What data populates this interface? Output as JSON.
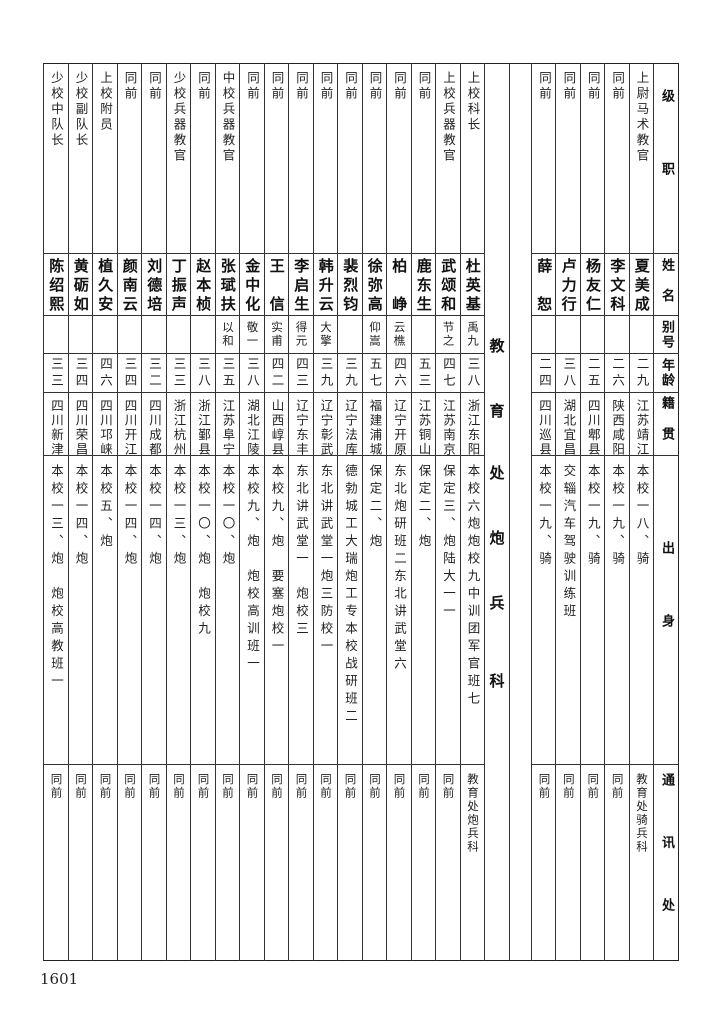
{
  "header": {
    "rank": "级职",
    "name": "姓名",
    "alias": "别号",
    "age": "年龄",
    "native": "籍贯",
    "education": "出身",
    "address": "通讯处"
  },
  "cavalry_rows": [
    {
      "rank": "上尉马术教官",
      "name": "夏美成",
      "alias": "",
      "age": "二九",
      "native": "江苏靖江",
      "education": "本校一八、骑",
      "address": "教育处骑兵科"
    },
    {
      "rank": "同前",
      "name": "李文科",
      "alias": "",
      "age": "二六",
      "native": "陕西咸阳",
      "education": "本校一九、骑",
      "address": "同前"
    },
    {
      "rank": "同前",
      "name": "杨友仁",
      "alias": "",
      "age": "二五",
      "native": "四川郫县",
      "education": "本校一九、骑",
      "address": "同前"
    },
    {
      "rank": "同前",
      "name": "卢力行",
      "alias": "",
      "age": "三八",
      "native": "湖北宜昌",
      "education": "交辎汽车驾驶训练班",
      "address": "同前"
    },
    {
      "rank": "同前",
      "name": "薛恕",
      "alias": "",
      "age": "二四",
      "native": "四川巡县",
      "education": "本校一九、骑",
      "address": "同前"
    }
  ],
  "section_title": "教育处炮兵科",
  "artillery_rows": [
    {
      "rank": "上校科长",
      "name": "杜英基",
      "alias": "禹九",
      "age": "三八",
      "native": "浙江东阳",
      "education": "本校六炮炮校九中训团军官班七",
      "address": "教育处炮兵科"
    },
    {
      "rank": "上校兵器教官",
      "name": "武颂和",
      "alias": "节之",
      "age": "四七",
      "native": "江苏南京",
      "education": "保定三、炮陆大一一",
      "address": "同前"
    },
    {
      "rank": "同前",
      "name": "鹿东生",
      "alias": "",
      "age": "五三",
      "native": "江苏铜山",
      "education": "保定二、炮",
      "address": "同前"
    },
    {
      "rank": "同前",
      "name": "柏峥",
      "alias": "云樵",
      "age": "四六",
      "native": "辽宁开原",
      "education": "东北炮研班二东北讲武堂六",
      "address": "同前"
    },
    {
      "rank": "同前",
      "name": "徐弥高",
      "alias": "仰嵩",
      "age": "五七",
      "native": "福建浦城",
      "education": "保定二、炮",
      "address": "同前"
    },
    {
      "rank": "同前",
      "name": "裴烈钧",
      "alias": "",
      "age": "三九",
      "native": "辽宁法库",
      "education": "德勃城工大瑞炮工专本校战研班二",
      "address": "同前"
    },
    {
      "rank": "同前",
      "name": "韩升云",
      "alias": "大擎",
      "age": "三九",
      "native": "辽宁彰武",
      "education": "东北讲武堂一炮三防校一",
      "address": "同前"
    },
    {
      "rank": "同前",
      "name": "李启生",
      "alias": "得元",
      "age": "四三",
      "native": "辽宁东丰",
      "education": "东北讲武堂一　炮校三",
      "address": "同前"
    },
    {
      "rank": "同前",
      "name": "王信",
      "alias": "实甫",
      "age": "四二",
      "native": "山西崞县",
      "education": "本校九、炮　要塞炮校一",
      "address": "同前"
    },
    {
      "rank": "同前",
      "name": "金中化",
      "alias": "敬一",
      "age": "三八",
      "native": "湖北江陵",
      "education": "本校九、炮　炮校高训班一",
      "address": "同前"
    },
    {
      "rank": "中校兵器教官",
      "name": "张珷扶",
      "alias": "以和",
      "age": "三五",
      "native": "江苏阜宁",
      "education": "本校一〇、炮",
      "address": "同前"
    },
    {
      "rank": "同前",
      "name": "赵本桢",
      "alias": "",
      "age": "三八",
      "native": "浙江鄞县",
      "education": "本校一〇、炮　炮校九",
      "address": "同前"
    },
    {
      "rank": "少校兵器教官",
      "name": "丁振声",
      "alias": "",
      "age": "三三",
      "native": "浙江杭州",
      "education": "本校一三、炮",
      "address": "同前"
    },
    {
      "rank": "同前",
      "name": "刘德培",
      "alias": "",
      "age": "三二",
      "native": "四川成都",
      "education": "本校一四、炮",
      "address": "同前"
    },
    {
      "rank": "同前",
      "name": "颜南云",
      "alias": "",
      "age": "三四",
      "native": "四川开江",
      "education": "本校一四、炮",
      "address": "同前"
    },
    {
      "rank": "上校附员",
      "name": "植久安",
      "alias": "",
      "age": "四六",
      "native": "四川邛崃",
      "education": "本校五、炮",
      "address": "同前"
    },
    {
      "rank": "少校副队长",
      "name": "黄砺如",
      "alias": "",
      "age": "三四",
      "native": "四川荣昌",
      "education": "本校一四、炮",
      "address": "同前"
    },
    {
      "rank": "少校中队长",
      "name": "陈绍熙",
      "alias": "",
      "age": "三三",
      "native": "四川新津",
      "education": "本校一三、炮　炮校高教班一",
      "address": "同前"
    }
  ],
  "page_number": "1601"
}
